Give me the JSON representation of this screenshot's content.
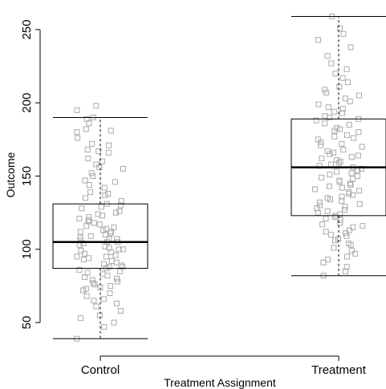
{
  "chart_data": {
    "type": "boxplot",
    "xlabel": "Treatment Assignment",
    "ylabel": "Outcome",
    "categories": [
      "Control",
      "Treatment"
    ],
    "ylim": [
      32,
      262
    ],
    "yticks": [
      50,
      100,
      150,
      200,
      250
    ],
    "grid": false,
    "boxes": [
      {
        "category": "Control",
        "whisker_low": 39,
        "q1": 87,
        "median": 105,
        "q3": 131,
        "whisker_high": 190
      },
      {
        "category": "Treatment",
        "whisker_low": 82,
        "q1": 123,
        "median": 156,
        "q3": 189,
        "whisker_high": 259
      }
    ],
    "point_style": "hollow grey squares, jittered horizontally",
    "point_color": "#aaaaaa",
    "points": [
      {
        "group": "Control",
        "values": [
          198,
          195,
          190,
          189,
          186,
          182,
          181,
          180,
          176,
          172,
          171,
          168,
          167,
          166,
          162,
          160,
          158,
          156,
          155,
          152,
          150,
          147,
          146,
          144,
          142,
          139,
          138,
          137,
          135,
          133,
          131,
          130,
          129,
          128,
          126,
          125,
          124,
          123,
          122,
          121,
          120,
          119,
          118,
          117,
          116,
          115,
          114,
          113,
          112,
          112,
          111,
          110,
          109,
          108,
          107,
          107,
          106,
          105,
          105,
          104,
          103,
          102,
          101,
          100,
          100,
          99,
          98,
          97,
          96,
          95,
          95,
          94,
          93,
          92,
          91,
          90,
          89,
          88,
          88,
          87,
          86,
          85,
          84,
          83,
          82,
          81,
          80,
          79,
          78,
          77,
          76,
          75,
          74,
          73,
          72,
          70,
          68,
          66,
          65,
          63,
          61,
          58,
          55,
          53,
          50,
          47,
          39
        ]
      },
      {
        "group": "Treatment",
        "values": [
          259,
          251,
          247,
          243,
          238,
          232,
          227,
          223,
          220,
          217,
          214,
          211,
          209,
          207,
          205,
          203,
          201,
          199,
          197,
          196,
          194,
          193,
          191,
          190,
          189,
          188,
          186,
          185,
          183,
          182,
          181,
          180,
          178,
          177,
          176,
          175,
          173,
          172,
          171,
          170,
          168,
          167,
          166,
          165,
          164,
          163,
          162,
          161,
          160,
          159,
          158,
          157,
          156,
          155,
          154,
          153,
          152,
          151,
          150,
          149,
          148,
          147,
          146,
          145,
          144,
          143,
          142,
          141,
          140,
          139,
          138,
          137,
          136,
          135,
          134,
          133,
          132,
          131,
          130,
          129,
          128,
          127,
          126,
          125,
          124,
          123,
          122,
          121,
          120,
          118,
          117,
          116,
          115,
          113,
          112,
          111,
          110,
          109,
          107,
          106,
          104,
          103,
          101,
          99,
          97,
          95,
          93,
          91,
          88,
          85,
          82
        ]
      }
    ]
  }
}
